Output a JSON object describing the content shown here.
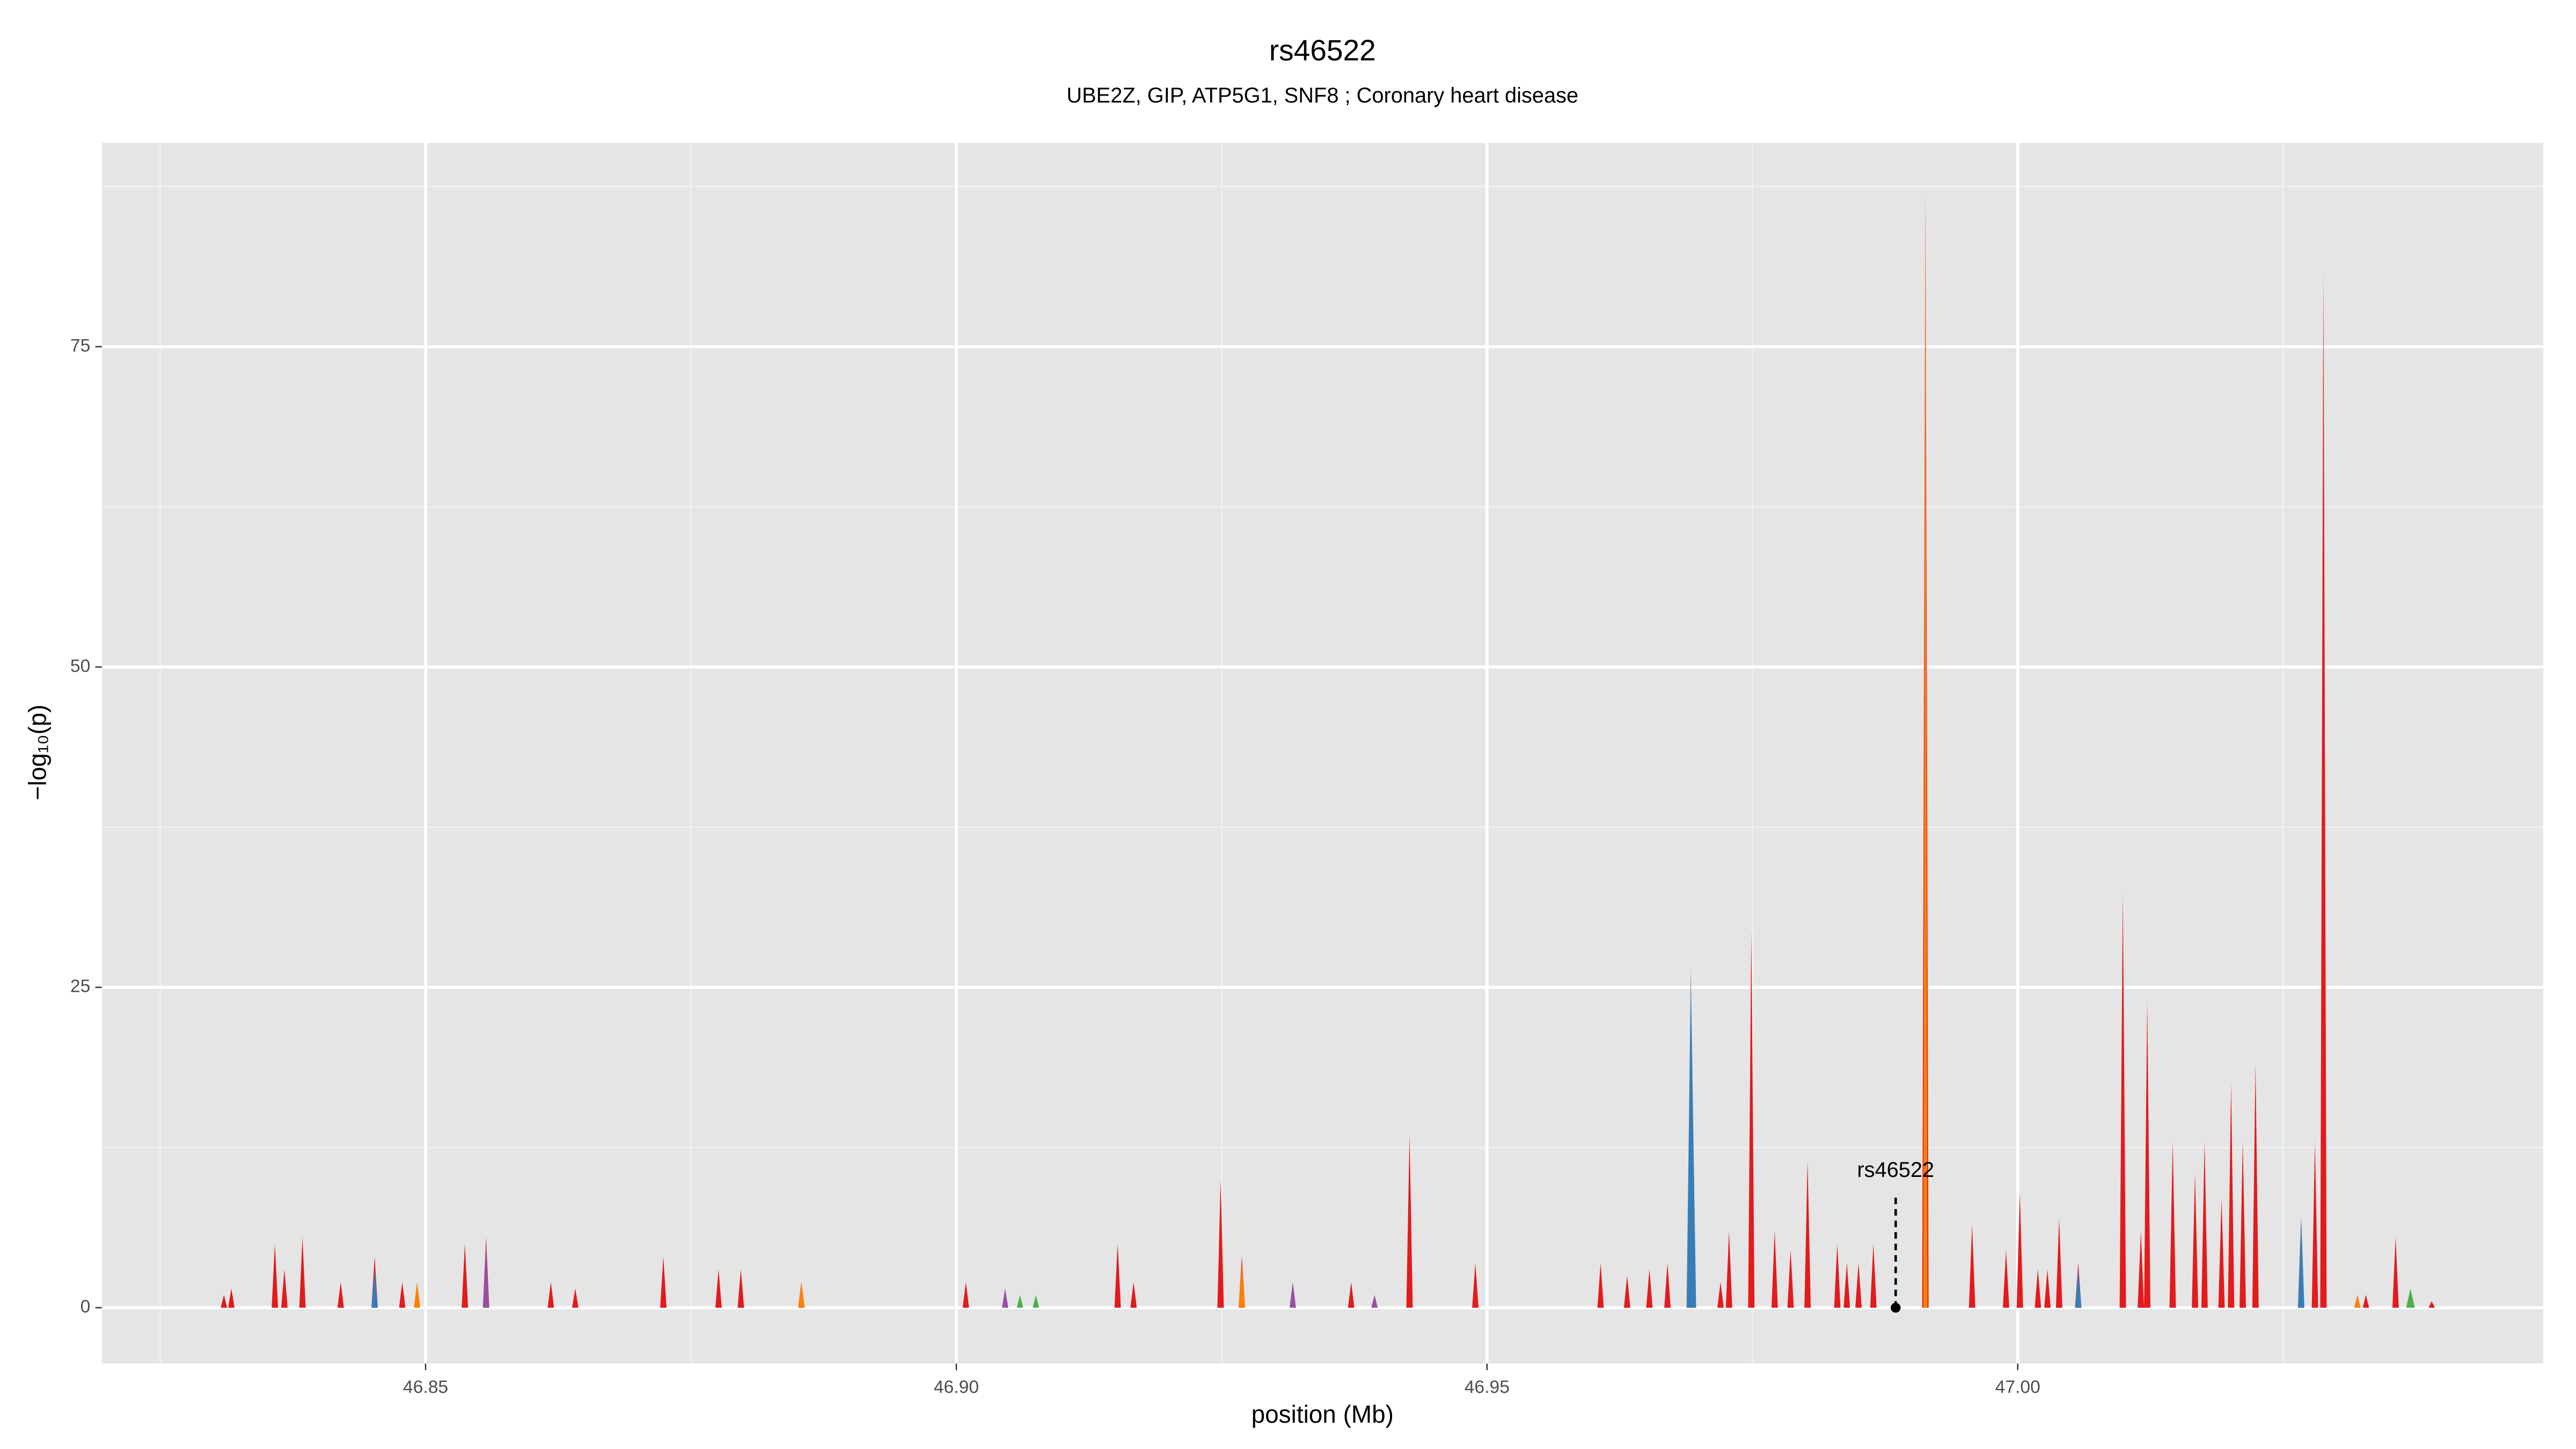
{
  "chart_data": {
    "type": "area",
    "title": "rs46522",
    "subtitle": "UBE2Z, GIP, ATP5G1, SNF8 ; Coronary heart disease",
    "x_label": "position (Mb)",
    "y_label": "−log₁₀(p)",
    "xlim": [
      46.8195,
      47.0495
    ],
    "ylim": [
      -4.36,
      90.9
    ],
    "xticks": [
      46.85,
      {
        "value": 46.9,
        "label": "46.90"
      },
      46.95,
      {
        "value": 47,
        "label": "47.00"
      }
    ],
    "yticks": [
      0,
      25,
      50,
      75
    ],
    "x_minor_grid": [
      46.825,
      46.875,
      46.925,
      46.975,
      47.025
    ],
    "y_minor_grid": [
      12.5,
      37.5,
      62.5,
      87.5
    ],
    "grid": true,
    "annotation": {
      "label": "rs46522",
      "x": 46.9885,
      "y": 0,
      "line_top": 8.6
    },
    "series": [
      {
        "color": "#e41a1c",
        "x": [
          46.8307,
          46.831,
          46.8313,
          46.8314,
          46.8317,
          46.832,
          46.8355,
          46.8358,
          46.8361,
          46.8364,
          46.8367,
          46.837,
          46.8381,
          46.8384,
          46.8387,
          46.8417,
          46.842,
          46.8423,
          46.8449,
          46.8452,
          46.8455,
          46.8475,
          46.8478,
          46.8481,
          46.8534,
          46.8537,
          46.854,
          46.8554,
          46.8557,
          46.856,
          46.8615,
          46.8618,
          46.8621,
          46.8638,
          46.8641,
          46.8644,
          46.8721,
          46.8724,
          46.8727,
          46.8773,
          46.8776,
          46.8779,
          46.8794,
          46.8797,
          46.88,
          46.8851,
          46.8854,
          46.8857,
          46.9006,
          46.9009,
          46.9012,
          46.9149,
          46.9152,
          46.9155,
          46.9164,
          46.9167,
          46.917,
          46.9246,
          46.9249,
          46.9252,
          46.9266,
          46.9269,
          46.9272,
          46.9369,
          46.9372,
          46.9375,
          46.9424,
          46.9427,
          46.943,
          46.9486,
          46.9489,
          46.9492,
          46.9604,
          46.9607,
          46.961,
          46.9629,
          46.9632,
          46.9635,
          46.965,
          46.9653,
          46.9656,
          46.9667,
          46.967,
          46.9673,
          46.9689,
          46.9692,
          46.9695,
          46.9717,
          46.972,
          46.9723,
          46.9725,
          46.9728,
          46.9731,
          46.9746,
          46.9749,
          46.9752,
          46.9768,
          46.9771,
          46.9774,
          46.9783,
          46.9786,
          46.9789,
          46.9799,
          46.9802,
          46.9805,
          46.9827,
          46.983,
          46.9833,
          46.9836,
          46.9839,
          46.9842,
          46.9847,
          46.985,
          46.9853,
          46.9861,
          46.9864,
          46.9867,
          46.991,
          46.9913,
          46.9916,
          46.9954,
          46.9957,
          46.996,
          46.9986,
          46.9989,
          46.9992,
          46.9999,
          47.0002,
          47.0005,
          47.0016,
          47.0019,
          47.0022,
          47.0025,
          47.0028,
          47.0031,
          47.0036,
          47.0039,
          47.0042,
          47.0054,
          47.0057,
          47.006,
          47.0096,
          47.0099,
          47.0102,
          47.0113,
          47.0116,
          47.0119,
          47.0122,
          47.0125,
          47.0143,
          47.0146,
          47.0149,
          47.0164,
          47.0167,
          47.017,
          47.0173,
          47.0176,
          47.0179,
          47.0189,
          47.0192,
          47.0195,
          47.0198,
          47.0201,
          47.0204,
          47.0209,
          47.0212,
          47.0215,
          47.0221,
          47.0224,
          47.0227,
          47.0264,
          47.0267,
          47.027,
          47.0277,
          47.028,
          47.0283,
          47.0285,
          47.0288,
          47.0291,
          47.0325,
          47.0328,
          47.0331,
          47.0353,
          47.0356,
          47.0359,
          47.0387,
          47.039,
          47.0393
        ],
        "values": [
          0,
          1,
          0,
          0,
          1.5,
          0,
          0,
          5,
          0,
          0,
          3,
          0,
          0,
          5.5,
          0,
          0,
          2,
          0,
          0,
          4,
          0,
          0,
          2,
          0,
          0,
          5,
          0,
          0,
          5.5,
          0,
          0,
          2,
          0,
          0,
          1.5,
          0,
          0,
          4,
          0,
          0,
          3,
          0,
          0,
          3,
          0,
          0,
          2,
          0,
          0,
          2,
          0,
          0,
          5,
          0,
          0,
          2,
          0,
          0,
          10,
          0,
          0,
          4,
          0,
          0,
          2,
          0,
          0,
          13.5,
          0,
          0,
          3.5,
          0,
          0,
          3.5,
          0,
          0,
          2.5,
          0,
          0,
          3,
          0,
          0,
          3.5,
          0,
          0,
          26.5,
          0,
          0,
          2,
          0,
          0,
          6,
          0,
          0,
          29.5,
          0,
          0,
          6,
          0,
          0,
          4.5,
          0,
          0,
          11.5,
          0,
          0,
          5,
          0,
          0,
          3.5,
          0,
          0,
          3.5,
          0,
          0,
          5,
          0,
          0,
          87,
          0,
          0,
          6.5,
          0,
          0,
          4.5,
          0,
          0,
          9,
          0,
          0,
          3,
          0,
          0,
          3,
          0,
          0,
          7,
          0,
          0,
          3.5,
          0,
          0,
          32.5,
          0,
          0,
          6,
          0,
          24,
          0,
          0,
          13,
          0,
          0,
          10.5,
          0,
          0,
          13,
          0,
          0,
          8.5,
          0,
          0,
          17.5,
          0,
          0,
          13,
          0,
          0,
          19,
          0,
          0,
          7,
          0,
          0,
          13,
          0,
          0,
          81,
          0,
          0,
          1,
          0,
          0,
          5.5,
          0,
          0,
          0.5,
          0
        ]
      },
      {
        "color": "#377eb8",
        "x": [
          46.8449,
          46.8452,
          46.8455,
          46.9688,
          46.9692,
          46.9697,
          47.0054,
          47.0057,
          47.006,
          47.0264,
          47.0267,
          47.027
        ],
        "values": [
          0,
          3,
          0,
          0,
          26,
          0,
          0,
          3,
          0,
          0,
          7,
          0
        ]
      },
      {
        "color": "#ff7f00",
        "x": [
          46.8489,
          46.8492,
          46.8495,
          46.8851,
          46.8854,
          46.8857,
          46.9266,
          46.9269,
          46.9272,
          46.9911,
          46.9913,
          46.9915,
          47.0317,
          47.032,
          47.0323
        ],
        "values": [
          0,
          2,
          0,
          0,
          2,
          0,
          0,
          3.5,
          0,
          0,
          86,
          0,
          0,
          1,
          0
        ]
      },
      {
        "color": "#984ea3",
        "x": [
          46.8554,
          46.8557,
          46.856,
          46.9043,
          46.9046,
          46.9049,
          46.9314,
          46.9317,
          46.932,
          46.9391,
          46.9394,
          46.9397
        ],
        "values": [
          0,
          5,
          0,
          0,
          1.5,
          0,
          0,
          2,
          0,
          0,
          1,
          0
        ]
      },
      {
        "color": "#4daf4a",
        "x": [
          46.9057,
          46.906,
          46.9063,
          46.9072,
          46.9075,
          46.9078,
          47.0366,
          47.037,
          47.0374
        ],
        "values": [
          0,
          1,
          0,
          0,
          1,
          0,
          0,
          1.5,
          0
        ]
      }
    ]
  }
}
